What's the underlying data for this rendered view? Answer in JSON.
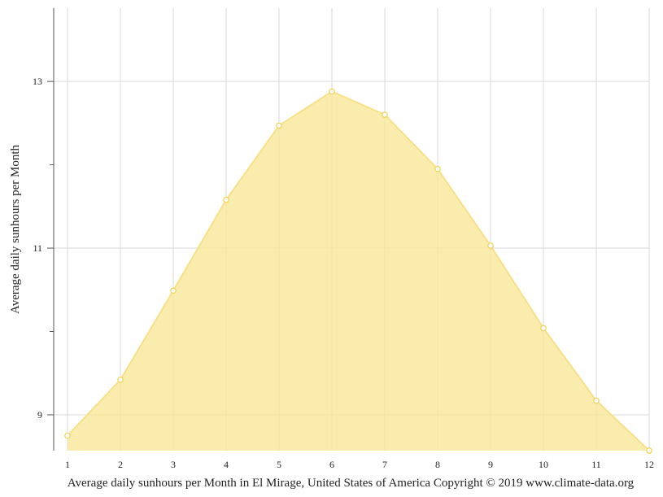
{
  "chart_data": {
    "type": "area",
    "title": "",
    "xlabel": "Average daily sunhours per Month in El Mirage, United States of America Copyright © 2019 www.climate-data.org",
    "ylabel": "Average daily sunhours per Month",
    "x": [
      1,
      2,
      3,
      4,
      5,
      6,
      7,
      8,
      9,
      10,
      11,
      12
    ],
    "x_tick_labels": [
      "1",
      "2",
      "3",
      "4",
      "5",
      "6",
      "7",
      "8",
      "9",
      "10",
      "11",
      "12"
    ],
    "series": [
      {
        "values": [
          8.75,
          9.42,
          10.49,
          11.58,
          12.47,
          12.88,
          12.6,
          11.95,
          11.03,
          10.04,
          9.17,
          8.57
        ]
      }
    ],
    "xlim": [
      1,
      12
    ],
    "ylim": [
      8.57,
      13.88
    ],
    "y_ticks": [
      9,
      10,
      11,
      12,
      13
    ],
    "y_tick_labels": [
      "9",
      "",
      "11",
      "",
      "13"
    ],
    "grid": true,
    "colors": {
      "fill": "#f8e590",
      "line": "#f7e08a",
      "point_stroke": "#f2d45a"
    }
  }
}
